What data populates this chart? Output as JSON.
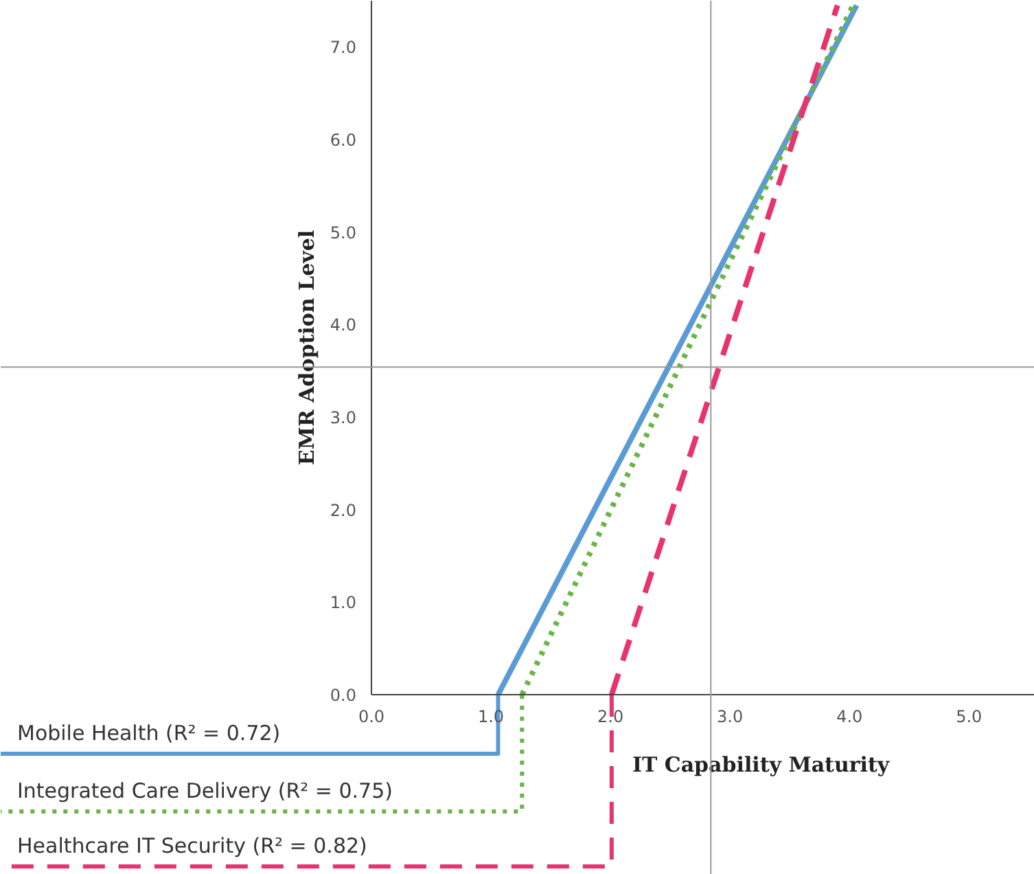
{
  "chart_data": {
    "type": "line",
    "xlabel": "IT Capability Maturity",
    "ylabel": "EMR Adoption Level",
    "xlim": [
      0,
      5.55
    ],
    "ylim": [
      0,
      7.5
    ],
    "xticks": [
      {
        "value": 0,
        "label": "0.0"
      },
      {
        "value": 1,
        "label": "1.0"
      },
      {
        "value": 2,
        "label": "2.0"
      },
      {
        "value": 3,
        "label": "3.0"
      },
      {
        "value": 4,
        "label": "4.0"
      },
      {
        "value": 5,
        "label": "5.0"
      }
    ],
    "yticks": [
      {
        "value": 0,
        "label": "0.0"
      },
      {
        "value": 1,
        "label": "1.0"
      },
      {
        "value": 2,
        "label": "2.0"
      },
      {
        "value": 3,
        "label": "3.0"
      },
      {
        "value": 4,
        "label": "4.0"
      },
      {
        "value": 5,
        "label": "5.0"
      },
      {
        "value": 6,
        "label": "6.0"
      },
      {
        "value": 7,
        "label": "7.0"
      }
    ],
    "grid": false,
    "marker": "none",
    "ref_lines": [
      {
        "axis": "x",
        "value": 2.84,
        "color": "#999999"
      },
      {
        "axis": "y",
        "value": 3.54,
        "color": "#999999"
      }
    ],
    "series": [
      {
        "name": "Mobile Health (R² = 0.72)",
        "color": "#5b9bd5",
        "line_style": "solid",
        "x": [
          1.06,
          4.06
        ],
        "values": [
          0,
          7.45
        ]
      },
      {
        "name": "Integrated Care Delivery (R² = 0.75)",
        "color": "#6ab547",
        "line_style": "dotted",
        "x": [
          1.26,
          4.03
        ],
        "values": [
          0,
          7.45
        ]
      },
      {
        "name": "Healthcare IT Security (R² = 0.82)",
        "color": "#e8336d",
        "line_style": "dashed",
        "x": [
          2.01,
          3.9
        ],
        "values": [
          0,
          7.45
        ]
      }
    ]
  }
}
